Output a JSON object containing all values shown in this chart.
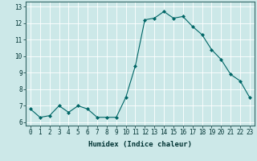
{
  "x": [
    0,
    1,
    2,
    3,
    4,
    5,
    6,
    7,
    8,
    9,
    10,
    11,
    12,
    13,
    14,
    15,
    16,
    17,
    18,
    19,
    20,
    21,
    22,
    23
  ],
  "y": [
    6.8,
    6.3,
    6.4,
    7.0,
    6.6,
    7.0,
    6.8,
    6.3,
    6.3,
    6.3,
    7.5,
    9.4,
    12.2,
    12.3,
    12.7,
    12.3,
    12.4,
    11.8,
    11.3,
    10.4,
    9.8,
    8.9,
    8.5,
    7.5
  ],
  "line_color": "#006666",
  "marker": "D",
  "marker_size": 2.0,
  "bg_color": "#cce8e8",
  "grid_color": "#ffffff",
  "xlabel": "Humidex (Indice chaleur)",
  "ylabel": "",
  "xlim": [
    -0.5,
    23.5
  ],
  "ylim": [
    5.8,
    13.3
  ],
  "yticks": [
    6,
    7,
    8,
    9,
    10,
    11,
    12,
    13
  ],
  "xticks": [
    0,
    1,
    2,
    3,
    4,
    5,
    6,
    7,
    8,
    9,
    10,
    11,
    12,
    13,
    14,
    15,
    16,
    17,
    18,
    19,
    20,
    21,
    22,
    23
  ],
  "xlabel_fontsize": 6.5,
  "tick_fontsize": 5.5,
  "line_width": 0.8
}
